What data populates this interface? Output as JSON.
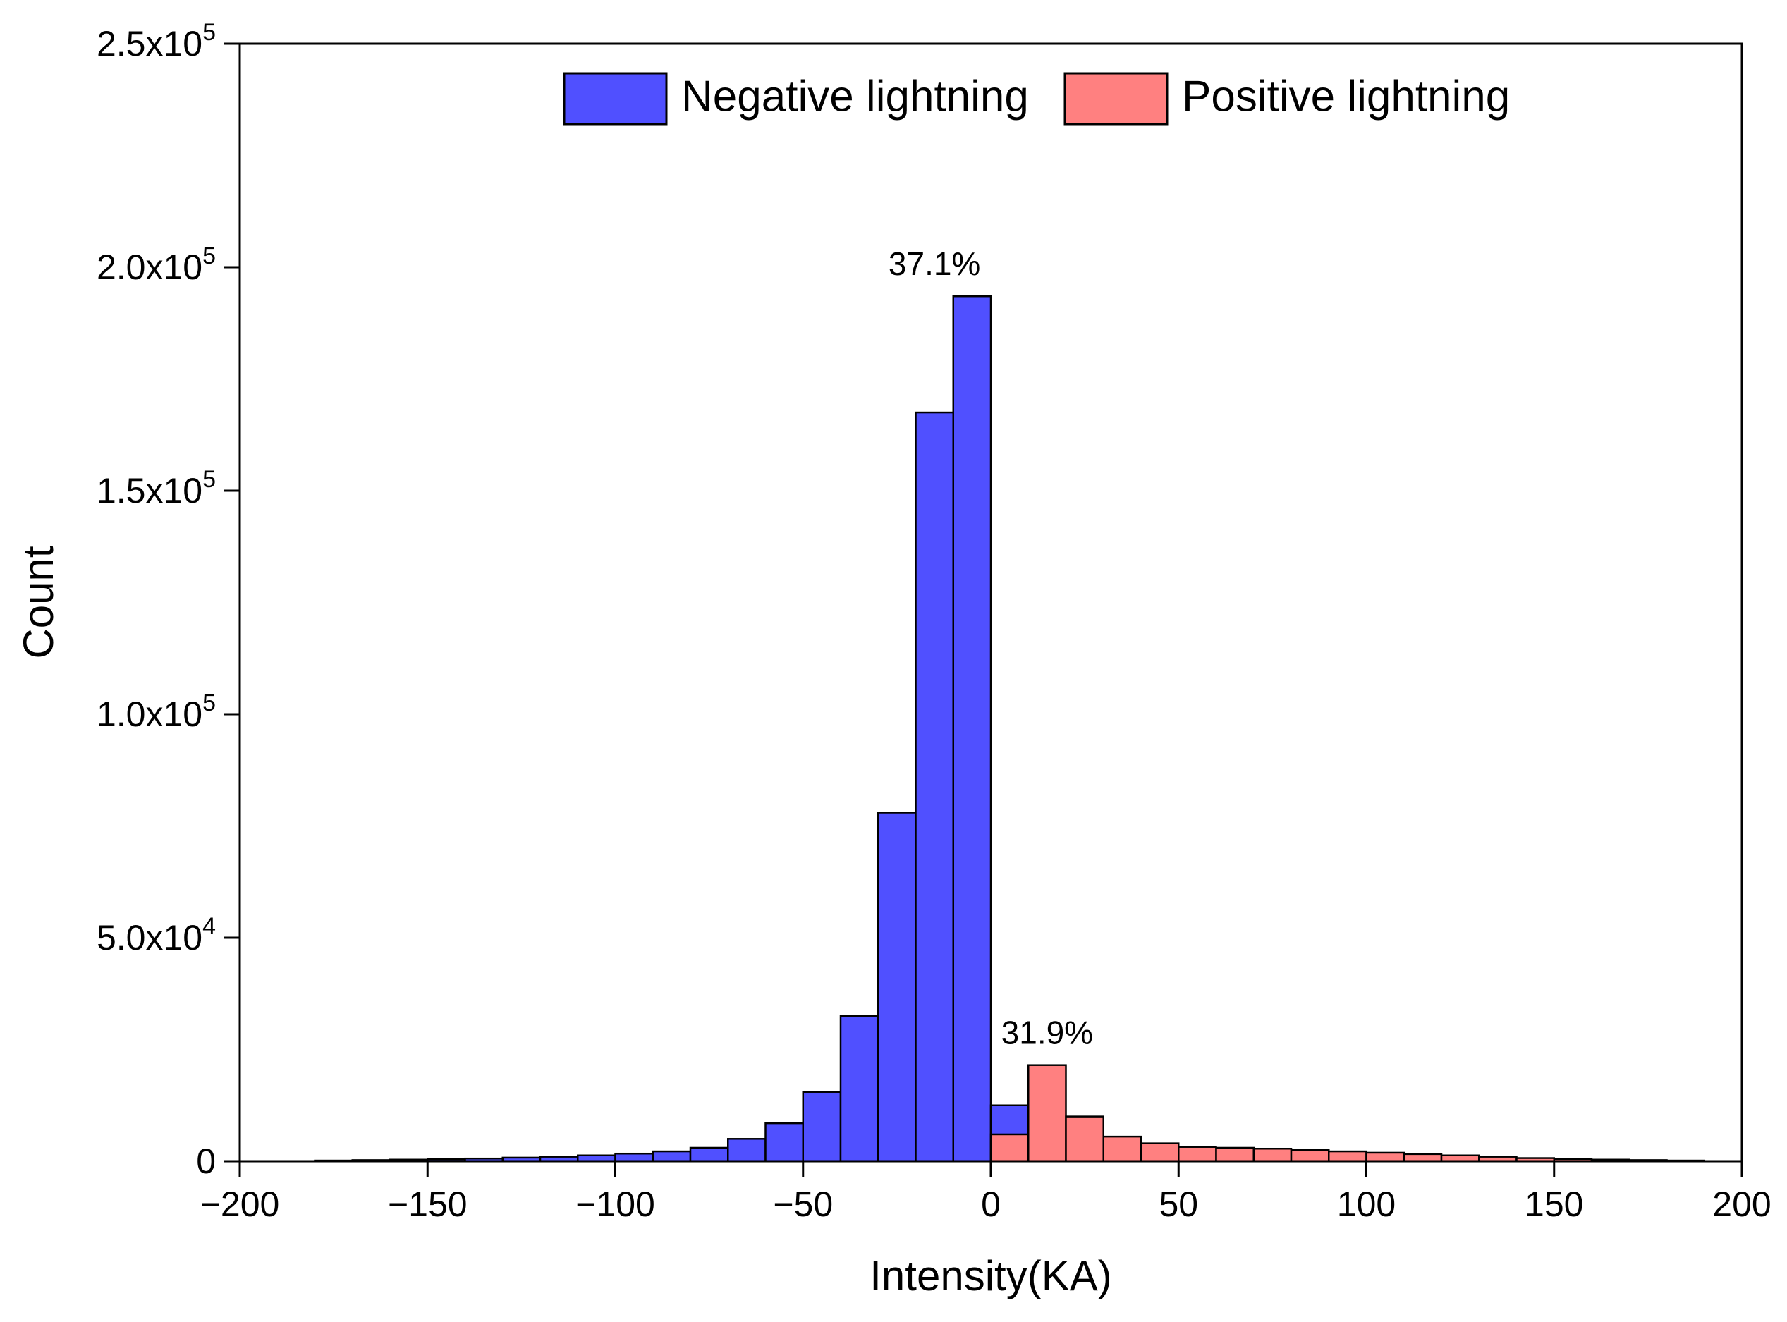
{
  "chart_data": {
    "type": "bar",
    "title": "",
    "xlabel": "Intensity(KA)",
    "ylabel": "Count",
    "xlim": [
      -200,
      200
    ],
    "ylim": [
      0,
      250000
    ],
    "grid": false,
    "bin_width": 10,
    "x_ticks": [
      {
        "value": -200,
        "label": "−200"
      },
      {
        "value": -150,
        "label": "−150"
      },
      {
        "value": -100,
        "label": "−100"
      },
      {
        "value": -50,
        "label": "−50"
      },
      {
        "value": 0,
        "label": "0"
      },
      {
        "value": 50,
        "label": "50"
      },
      {
        "value": 100,
        "label": "100"
      },
      {
        "value": 150,
        "label": "150"
      },
      {
        "value": 200,
        "label": "200"
      }
    ],
    "y_ticks": [
      {
        "value": 0,
        "mantissa": "0",
        "exponent": ""
      },
      {
        "value": 50000,
        "mantissa": "5.0x10",
        "exponent": "4"
      },
      {
        "value": 100000,
        "mantissa": "1.0x10",
        "exponent": "5"
      },
      {
        "value": 150000,
        "mantissa": "1.5x10",
        "exponent": "5"
      },
      {
        "value": 200000,
        "mantissa": "2.0x10",
        "exponent": "5"
      },
      {
        "value": 250000,
        "mantissa": "2.5x10",
        "exponent": "5"
      }
    ],
    "legend_position": "top",
    "series": [
      {
        "name": "Negative lightning",
        "color": "#5050ff",
        "bins": [
          {
            "start": -180,
            "value": 150
          },
          {
            "start": -170,
            "value": 250
          },
          {
            "start": -160,
            "value": 350
          },
          {
            "start": -150,
            "value": 450
          },
          {
            "start": -140,
            "value": 600
          },
          {
            "start": -130,
            "value": 800
          },
          {
            "start": -120,
            "value": 1000
          },
          {
            "start": -110,
            "value": 1300
          },
          {
            "start": -100,
            "value": 1700
          },
          {
            "start": -90,
            "value": 2200
          },
          {
            "start": -80,
            "value": 3000
          },
          {
            "start": -70,
            "value": 5000
          },
          {
            "start": -60,
            "value": 8500
          },
          {
            "start": -50,
            "value": 15500
          },
          {
            "start": -40,
            "value": 32500
          },
          {
            "start": -30,
            "value": 78000
          },
          {
            "start": -20,
            "value": 167500
          },
          {
            "start": -10,
            "value": 193500
          },
          {
            "start": 0,
            "value": 12500
          }
        ]
      },
      {
        "name": "Positive lightning",
        "color": "#ff8080",
        "bins": [
          {
            "start": 0,
            "value": 6000
          },
          {
            "start": 10,
            "value": 21500
          },
          {
            "start": 20,
            "value": 10000
          },
          {
            "start": 30,
            "value": 5500
          },
          {
            "start": 40,
            "value": 4000
          },
          {
            "start": 50,
            "value": 3200
          },
          {
            "start": 60,
            "value": 3000
          },
          {
            "start": 70,
            "value": 2800
          },
          {
            "start": 80,
            "value": 2500
          },
          {
            "start": 90,
            "value": 2200
          },
          {
            "start": 100,
            "value": 1900
          },
          {
            "start": 110,
            "value": 1600
          },
          {
            "start": 120,
            "value": 1300
          },
          {
            "start": 130,
            "value": 1000
          },
          {
            "start": 140,
            "value": 700
          },
          {
            "start": 150,
            "value": 500
          },
          {
            "start": 160,
            "value": 350
          },
          {
            "start": 170,
            "value": 250
          },
          {
            "start": 180,
            "value": 150
          }
        ]
      }
    ],
    "annotations": [
      {
        "text": "37.1%",
        "x": -15,
        "y": 193500,
        "series": "Negative lightning"
      },
      {
        "text": "31.9%",
        "x": 15,
        "y": 21500,
        "series": "Positive lightning"
      }
    ]
  }
}
